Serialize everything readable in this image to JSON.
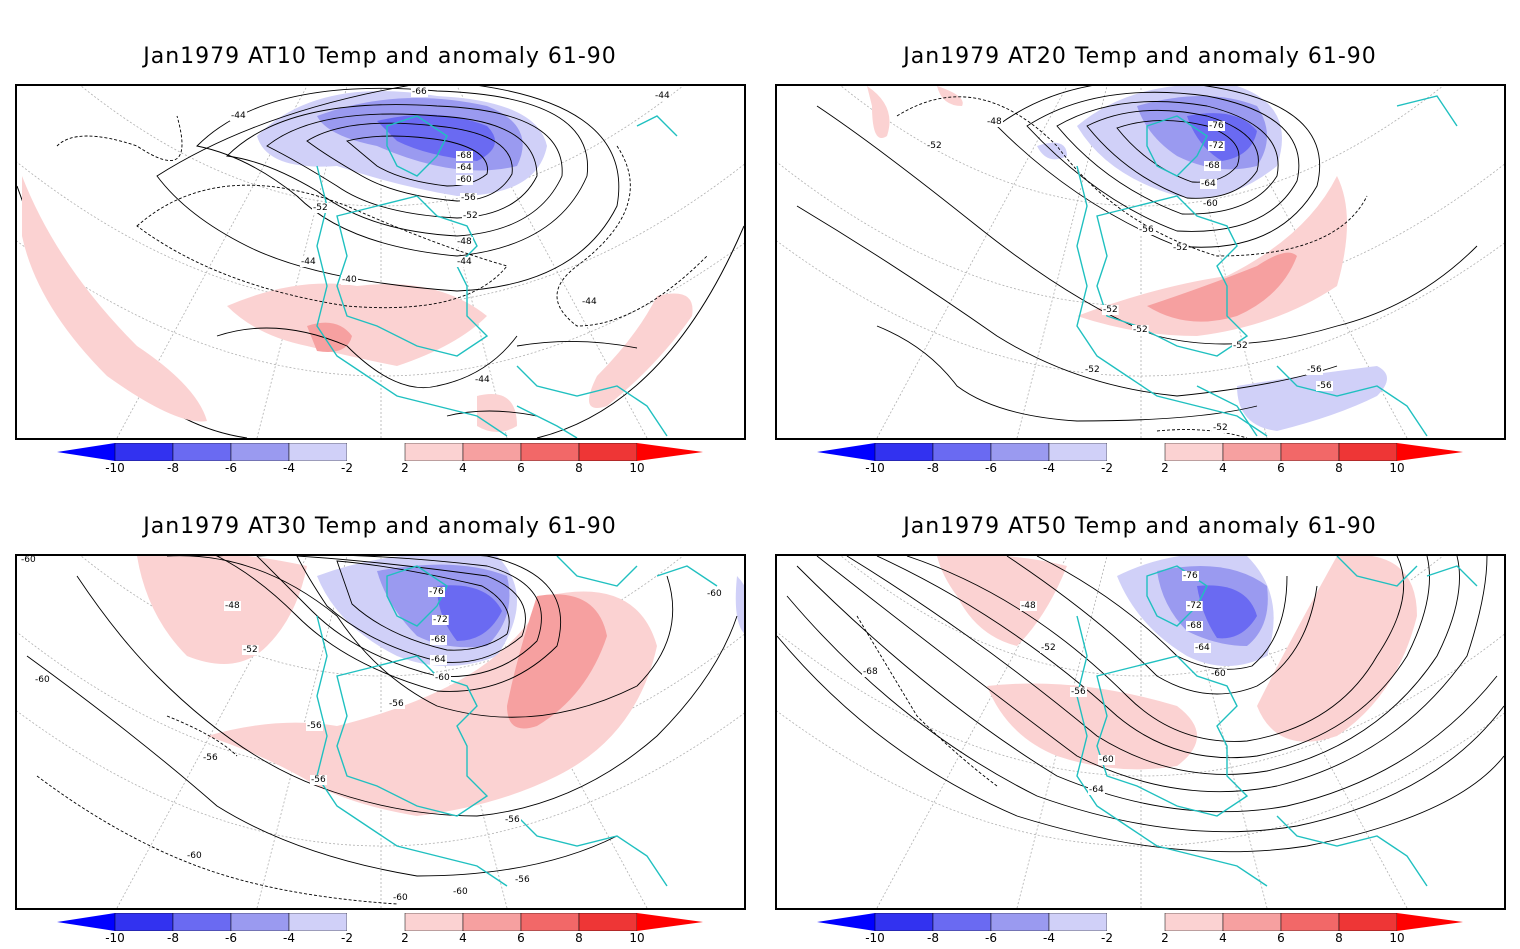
{
  "panels": [
    {
      "title": "Jan1979 AT10 Temp and anomaly 61-90",
      "contour_labels": [
        "-44",
        "-66",
        "-44",
        "-68",
        "-64",
        "-60",
        "-56",
        "-52",
        "-52",
        "-48",
        "-44",
        "-44",
        "-40",
        "-44",
        "-44"
      ]
    },
    {
      "title": "Jan1979 AT20 Temp and anomaly 61-90",
      "contour_labels": [
        "-48",
        "-52",
        "-76",
        "-72",
        "-68",
        "-64",
        "-60",
        "-56",
        "-52",
        "-52",
        "-52",
        "-52",
        "-52",
        "-56",
        "-56",
        "-52"
      ]
    },
    {
      "title": "Jan1979 AT30 Temp and anomaly 61-90",
      "contour_labels": [
        "-48",
        "-52",
        "-60",
        "-76",
        "-72",
        "-68",
        "-64",
        "-60",
        "-56",
        "-56",
        "-56",
        "-56",
        "-56",
        "-60",
        "-60",
        "-60",
        "-56",
        "-60",
        "-60"
      ]
    },
    {
      "title": "Jan1979 AT50 Temp and anomaly 61-90",
      "contour_labels": [
        "-48",
        "-52",
        "-68",
        "-76",
        "-72",
        "-68",
        "-64",
        "-60",
        "-56",
        "-60",
        "-64"
      ]
    }
  ],
  "colorbar": {
    "labels": [
      "-10",
      "-8",
      "-6",
      "-4",
      "-2",
      "2",
      "4",
      "6",
      "8",
      "10"
    ],
    "colors": [
      "#3232f0",
      "#6a6af2",
      "#9a9af0",
      "#d0d0f8",
      "#ffffff",
      "#fbd2d2",
      "#f6a0a0",
      "#f26868",
      "#ee3636"
    ],
    "arrow_low": "#0000ff",
    "arrow_high": "#ff0000"
  },
  "palette": {
    "coast": "#20c0c0",
    "contour": "#000000",
    "grid": "#a0a0a0",
    "blue_shade": "#a9a9f2",
    "red_shade": "#fbd2d2"
  }
}
